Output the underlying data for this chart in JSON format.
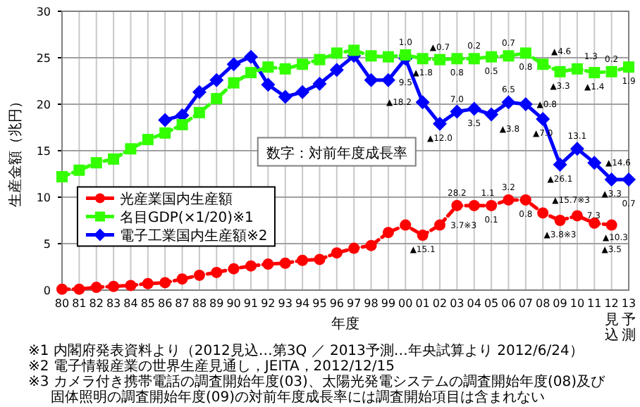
{
  "chart_data": {
    "type": "line",
    "xlabel": "年度",
    "ylabel": "生産金額（兆円）",
    "categories": [
      "80",
      "81",
      "82",
      "83",
      "84",
      "85",
      "86",
      "87",
      "88",
      "89",
      "90",
      "91",
      "92",
      "93",
      "94",
      "95",
      "96",
      "97",
      "98",
      "99",
      "00",
      "01",
      "02",
      "03",
      "04",
      "05",
      "06",
      "07",
      "08",
      "09",
      "10",
      "11",
      "12",
      "13"
    ],
    "ylim": [
      0,
      30
    ],
    "yticks": [
      0,
      5,
      10,
      15,
      20,
      25,
      30
    ],
    "grid": true,
    "legend": "left",
    "series": [
      {
        "name": "光産業国内生産額",
        "color": "#ff0000",
        "marker": "circle",
        "line_style": "dashed",
        "values": [
          0.1,
          0.1,
          0.3,
          0.4,
          0.5,
          0.7,
          0.8,
          1.2,
          1.6,
          1.9,
          2.3,
          2.6,
          2.8,
          2.9,
          3.2,
          3.3,
          4.0,
          4.5,
          4.8,
          6.2,
          7.0,
          5.9,
          7.0,
          9.1,
          9.1,
          9.1,
          9.7,
          9.7,
          8.3,
          7.5,
          8.0,
          7.2,
          7.0,
          null
        ]
      },
      {
        "name": "名目GDP(×1/20)※1",
        "color": "#33ff00",
        "marker": "square",
        "line_style": "dashed",
        "values": [
          12.2,
          12.9,
          13.7,
          14.1,
          15.2,
          16.2,
          16.9,
          17.8,
          19.1,
          20.6,
          22.3,
          23.4,
          24.0,
          23.8,
          24.3,
          24.8,
          25.5,
          25.8,
          25.2,
          25.1,
          25.3,
          24.9,
          24.8,
          24.9,
          24.9,
          25.1,
          25.2,
          25.5,
          24.3,
          23.5,
          23.8,
          23.4,
          23.5,
          24.0
        ]
      },
      {
        "name": "電子工業国内生産額※2",
        "color": "#0000ff",
        "marker": "diamond",
        "line_style": "solid",
        "values": [
          null,
          null,
          null,
          null,
          null,
          null,
          18.3,
          18.8,
          21.3,
          22.6,
          24.3,
          25.1,
          22.1,
          20.8,
          21.3,
          22.2,
          23.7,
          25.2,
          22.6,
          22.6,
          24.9,
          20.2,
          17.9,
          19.2,
          19.5,
          18.9,
          20.2,
          20.0,
          18.4,
          13.5,
          15.2,
          13.7,
          11.9,
          11.9
        ]
      }
    ],
    "annotations": [
      "数字：対前年度成長率",
      "見込",
      "予測",
      "※1 内閣府発表資料より（2012見込…第3Q ／ 2013予測…年央試算より 2012/6/24）",
      "※2 電子情報産業の世界生産見通し，JEITA，2012/12/15",
      "※3 カメラ付き携帯電話の調査開始年度(03)、太陽光発電システムの調査開始年度(08)及び",
      "固体照明の調査開始年度(09)の対前年度成長率には調査開始項目は含まれない",
      {
        "text": "1.0",
        "x": "00",
        "y": 25.3
      },
      {
        "text": "▲1.8",
        "x": "01",
        "y": 24.9
      },
      {
        "text": "▲0.7",
        "x": "02",
        "y": 24.8
      },
      {
        "text": "0.8",
        "x": "03",
        "y": 24.9
      },
      {
        "text": "0.2",
        "x": "04",
        "y": 24.9
      },
      {
        "text": "0.5",
        "x": "05",
        "y": 25.1
      },
      {
        "text": "0.7",
        "x": "06",
        "y": 25.2
      },
      {
        "text": "0.8",
        "x": "07",
        "y": 25.5
      },
      {
        "text": "▲4.6",
        "x": "08",
        "y": 24.3
      },
      {
        "text": "▲3.3",
        "x": "09",
        "y": 23.5
      },
      {
        "text": "1.3",
        "x": "10",
        "y": 23.8
      },
      {
        "text": "▲1.4",
        "x": "11",
        "y": 23.4
      },
      {
        "text": "0.2",
        "x": "12",
        "y": 23.5
      },
      {
        "text": "1.9",
        "x": "13",
        "y": 24.0
      },
      {
        "text": "9.5",
        "x": "00",
        "y": 24.9
      },
      {
        "text": "▲18.2",
        "x": "01",
        "y": 20.2
      },
      {
        "text": "▲12.0",
        "x": "02",
        "y": 17.9
      },
      {
        "text": "7.0",
        "x": "03",
        "y": 19.2
      },
      {
        "text": "3.5",
        "x": "04",
        "y": 19.5
      },
      {
        "text": "▲3.8",
        "x": "05",
        "y": 18.9
      },
      {
        "text": "6.5",
        "x": "06",
        "y": 20.2
      },
      {
        "text": "▲0.8",
        "x": "07",
        "y": 20.0
      },
      {
        "text": "▲7.0",
        "x": "08",
        "y": 18.4
      },
      {
        "text": "▲26.1",
        "x": "09",
        "y": 13.5
      },
      {
        "text": "13.1",
        "x": "10",
        "y": 15.2
      },
      {
        "text": "▲14.6",
        "x": "11",
        "y": 13.7
      },
      {
        "text": "▲3.3",
        "x": "12",
        "y": 11.9
      },
      {
        "text": "0.7",
        "x": "13",
        "y": 11.9
      },
      {
        "text": "▲15.1",
        "x": "01",
        "y": 5.9
      },
      {
        "text": "3.7※3",
        "x": "02",
        "y": 7.0
      },
      {
        "text": "28.2",
        "x": "03",
        "y": 9.1
      },
      {
        "text": "1.1",
        "x": "04",
        "y": 9.1
      },
      {
        "text": "0.1",
        "x": "05",
        "y": 9.1
      },
      {
        "text": "3.2",
        "x": "06",
        "y": 9.7
      },
      {
        "text": "0.8",
        "x": "07",
        "y": 9.7
      },
      {
        "text": "▲15.7※3",
        "x": "08",
        "y": 8.3
      },
      {
        "text": "▲3.8※3",
        "x": "09",
        "y": 7.5
      },
      {
        "text": "7.3",
        "x": "10",
        "y": 8.0
      },
      {
        "text": "▲10.3",
        "x": "11",
        "y": 7.2
      },
      {
        "text": "▲3.5",
        "x": "12",
        "y": 7.0
      }
    ]
  }
}
